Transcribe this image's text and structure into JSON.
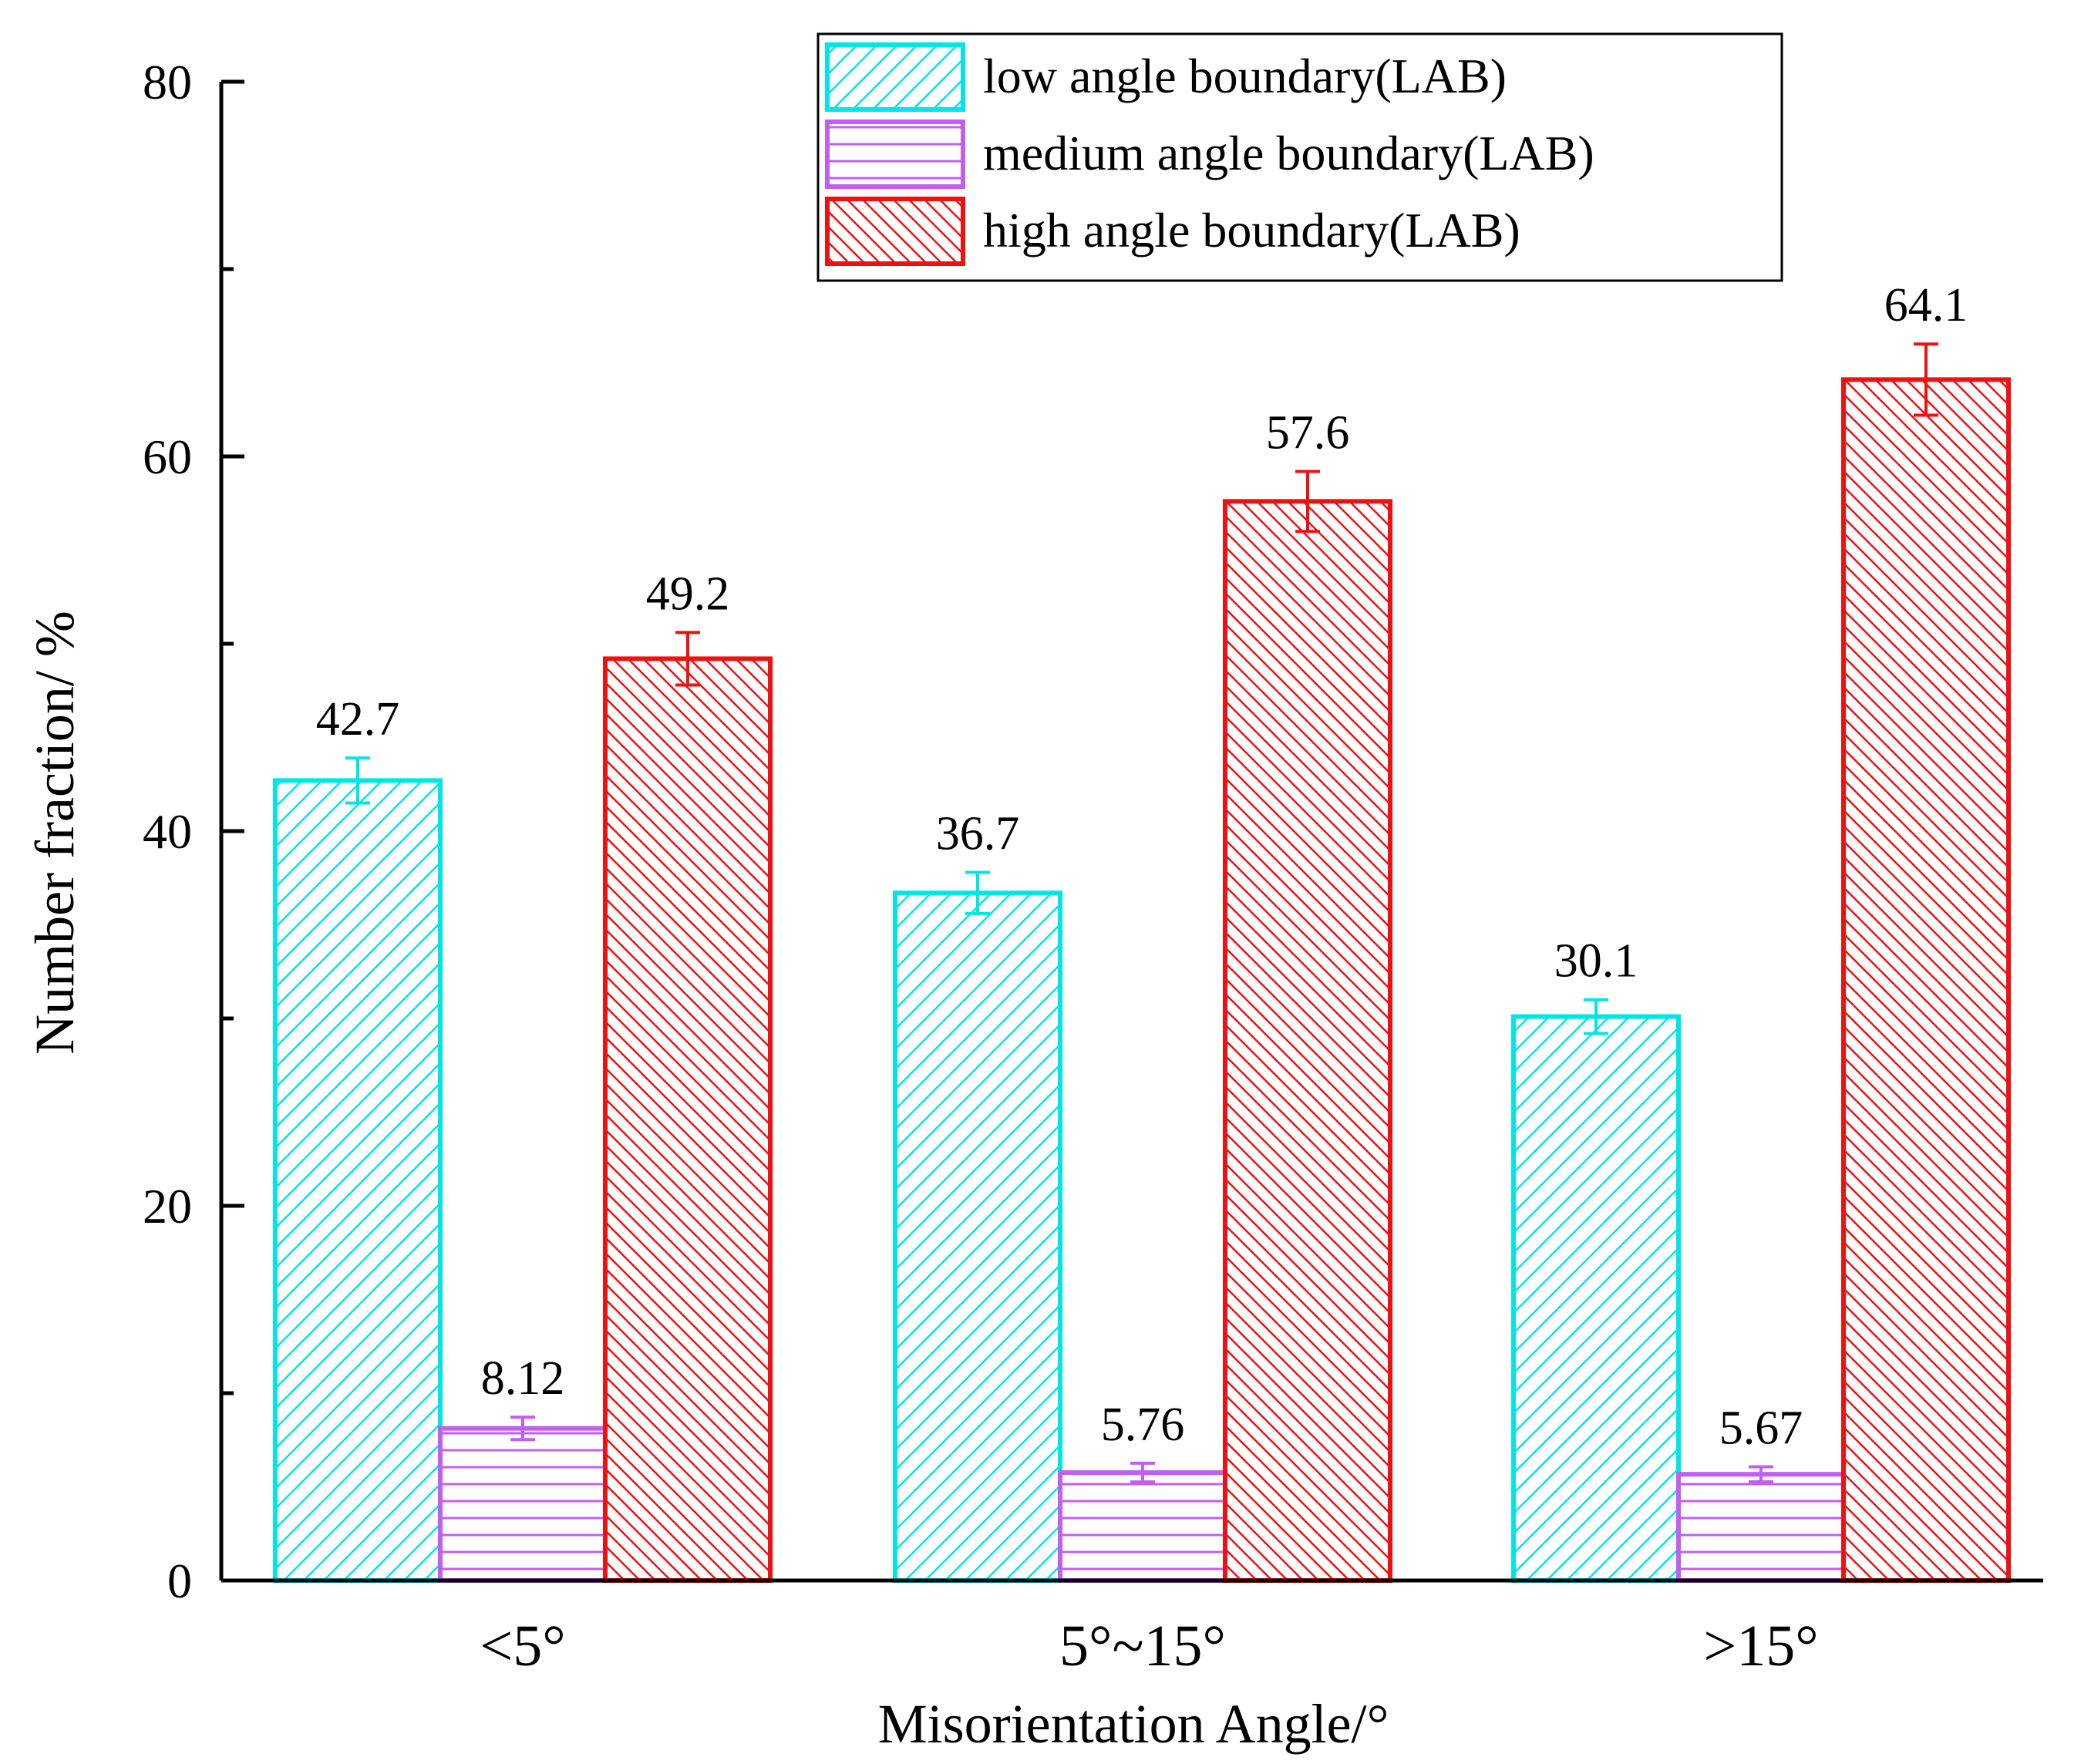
{
  "chart_data": {
    "type": "bar",
    "title": "",
    "xlabel": "Misorientation Angle/°",
    "ylabel": "Number fraction/ %",
    "ylim": [
      0,
      80
    ],
    "yticks": [
      0,
      20,
      40,
      60,
      80
    ],
    "categories": [
      "<5°",
      "5°~15°",
      ">15°"
    ],
    "series": [
      {
        "name": "low angle boundary(LAB)",
        "color": "#00e5e5",
        "pattern": "diagonal-up",
        "values": [
          42.7,
          36.7,
          30.1
        ],
        "labels": [
          "42.7",
          "36.7",
          "30.1"
        ],
        "errors": [
          1.2,
          1.1,
          0.9
        ]
      },
      {
        "name": "medium angle boundary(LAB)",
        "color": "#c060f0",
        "pattern": "horizontal",
        "values": [
          8.12,
          5.76,
          5.67
        ],
        "labels": [
          "8.12",
          "5.76",
          "5.67"
        ],
        "errors": [
          0.6,
          0.5,
          0.4
        ]
      },
      {
        "name": "high angle boundary(LAB)",
        "color": "#ee1111",
        "pattern": "diagonal-down",
        "values": [
          49.2,
          57.6,
          64.1
        ],
        "labels": [
          "49.2",
          "57.6",
          "64.1"
        ],
        "errors": [
          1.4,
          1.6,
          1.9
        ]
      }
    ],
    "legend_position": "top-right"
  }
}
